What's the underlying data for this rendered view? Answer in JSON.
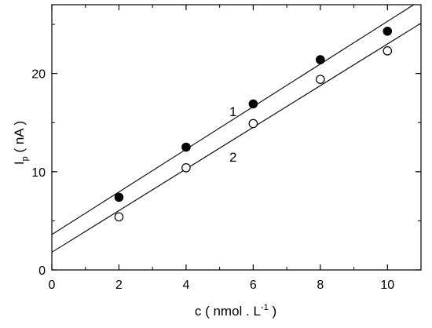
{
  "chart_data": {
    "type": "scatter",
    "title": "",
    "xlabel": {
      "main": "c ( nmol . L",
      "sup": "-1",
      "tail": " )"
    },
    "ylabel": {
      "main": "I",
      "sub": "p",
      "tail": " ( nA )"
    },
    "xlim": [
      0,
      11
    ],
    "ylim": [
      0,
      27
    ],
    "x_ticks": [
      0,
      2,
      4,
      6,
      8,
      10
    ],
    "x_tick_labels": [
      "0",
      "2",
      "4",
      "6",
      "8",
      "10"
    ],
    "y_ticks": [
      0,
      10,
      20
    ],
    "y_tick_labels": [
      "0",
      "10",
      "20"
    ],
    "grid": false,
    "legend": "none",
    "series": [
      {
        "label": "1",
        "marker": "filled-circle",
        "x": [
          2,
          4,
          6,
          8,
          10
        ],
        "y": [
          7.4,
          12.5,
          16.9,
          21.4,
          24.3
        ],
        "fit": {
          "slope": 2.17,
          "intercept": 3.6
        }
      },
      {
        "label": "2",
        "marker": "open-circle",
        "x": [
          2,
          4,
          6,
          8,
          10
        ],
        "y": [
          5.4,
          10.4,
          14.9,
          19.4,
          22.3
        ],
        "fit": {
          "slope": 2.12,
          "intercept": 1.8
        }
      }
    ]
  }
}
